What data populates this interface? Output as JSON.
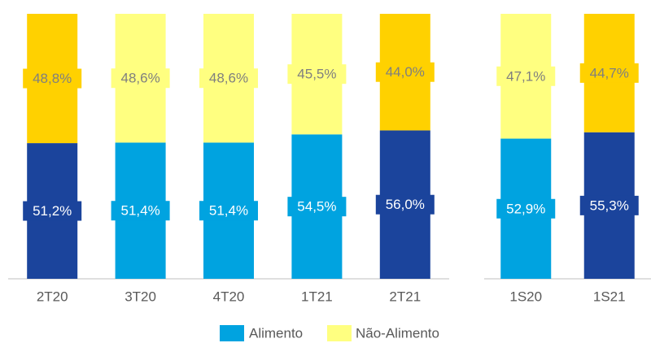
{
  "chart_data": [
    {
      "type": "bar",
      "stacked": true,
      "categories": [
        "2T20",
        "3T20",
        "4T20",
        "1T21",
        "2T21"
      ],
      "series": [
        {
          "name": "Alimento",
          "color": "#00a3e0",
          "label_color": "#ffffff",
          "colors": [
            "#1b449c",
            "#00a3e0",
            "#00a3e0",
            "#00a3e0",
            "#1b449c"
          ],
          "values": [
            51.2,
            51.4,
            51.4,
            54.5,
            56.0
          ],
          "value_labels": [
            "51,2%",
            "51,4%",
            "51,4%",
            "54,5%",
            "56,0%"
          ]
        },
        {
          "name": "Não-Alimento",
          "color": "#ffff80",
          "label_color": "#7f7f7f",
          "colors": [
            "#ffd100",
            "#ffff80",
            "#ffff80",
            "#ffff80",
            "#ffd100"
          ],
          "values": [
            48.8,
            48.6,
            48.6,
            45.5,
            44.0
          ],
          "value_labels": [
            "48,8%",
            "48,6%",
            "48,6%",
            "45,5%",
            "44,0%"
          ]
        }
      ]
    },
    {
      "type": "bar",
      "stacked": true,
      "categories": [
        "1S20",
        "1S21"
      ],
      "series": [
        {
          "name": "Alimento",
          "color": "#00a3e0",
          "label_color": "#ffffff",
          "colors": [
            "#00a3e0",
            "#1b449c"
          ],
          "values": [
            52.9,
            55.3
          ],
          "value_labels": [
            "52,9%",
            "55,3%"
          ]
        },
        {
          "name": "Não-Alimento",
          "color": "#ffff80",
          "label_color": "#7f7f7f",
          "colors": [
            "#ffff80",
            "#ffd100"
          ],
          "values": [
            47.1,
            44.7
          ],
          "value_labels": [
            "47,1%",
            "44,7%"
          ]
        }
      ]
    }
  ]
}
